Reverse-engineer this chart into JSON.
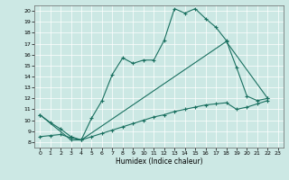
{
  "title": "",
  "xlabel": "Humidex (Indice chaleur)",
  "xlim": [
    -0.5,
    23.5
  ],
  "ylim": [
    7.5,
    20.5
  ],
  "xticks": [
    0,
    1,
    2,
    3,
    4,
    5,
    6,
    7,
    8,
    9,
    10,
    11,
    12,
    13,
    14,
    15,
    16,
    17,
    18,
    19,
    20,
    21,
    22,
    23
  ],
  "yticks": [
    8,
    9,
    10,
    11,
    12,
    13,
    14,
    15,
    16,
    17,
    18,
    19,
    20
  ],
  "bg_color": "#cce8e4",
  "grid_color": "#ffffff",
  "line_color": "#1a7060",
  "line1_x": [
    0,
    1,
    2,
    3,
    4,
    5,
    6,
    7,
    8,
    9,
    10,
    11,
    12,
    13,
    14,
    15,
    16,
    17,
    18,
    19,
    20,
    21,
    22
  ],
  "line1_y": [
    10.5,
    9.8,
    9.2,
    8.5,
    8.2,
    10.2,
    11.8,
    14.2,
    15.7,
    15.2,
    15.5,
    15.5,
    17.3,
    20.2,
    19.8,
    20.2,
    19.3,
    18.5,
    17.3,
    14.8,
    12.2,
    11.8,
    12.0
  ],
  "line2_x": [
    0,
    3,
    4,
    18,
    22
  ],
  "line2_y": [
    10.5,
    8.2,
    8.2,
    17.2,
    12.0
  ],
  "line3_x": [
    0,
    1,
    2,
    3,
    4,
    5,
    6,
    7,
    8,
    9,
    10,
    11,
    12,
    13,
    14,
    15,
    16,
    17,
    18,
    19,
    20,
    21,
    22
  ],
  "line3_y": [
    8.5,
    8.6,
    8.7,
    8.4,
    8.2,
    8.5,
    8.8,
    9.1,
    9.4,
    9.7,
    10.0,
    10.3,
    10.5,
    10.8,
    11.0,
    11.2,
    11.4,
    11.5,
    11.6,
    11.0,
    11.2,
    11.5,
    11.8
  ]
}
